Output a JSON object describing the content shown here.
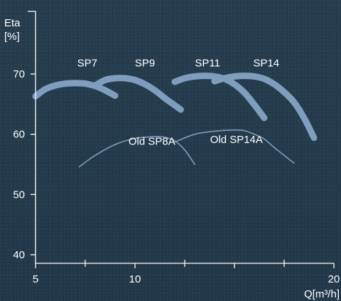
{
  "chart_data": {
    "type": "line",
    "ylabel_line1": "Eta",
    "ylabel_line2": "[%]",
    "xlabel": "Q[m³/h]",
    "xlim": [
      5,
      20
    ],
    "ylim": [
      40,
      80
    ],
    "x_ticks": [
      5,
      10,
      15,
      20
    ],
    "x_tick_labels": [
      "5",
      "10",
      "",
      "20"
    ],
    "x_minor_ticks": [
      7.5,
      12.5,
      17.5
    ],
    "y_ticks": [
      40,
      50,
      60,
      70
    ],
    "y_tick_labels": [
      "40",
      "50",
      "60",
      "70"
    ],
    "series": [
      {
        "name": "SP7",
        "style": "thick",
        "color": "#7f9dbc",
        "x": [
          5,
          5.5,
          6,
          6.5,
          7,
          7.5,
          8,
          8.5,
          9
        ],
        "y": [
          66.3,
          67.5,
          68.1,
          68.4,
          68.5,
          68.4,
          68.0,
          67.3,
          66.4
        ]
      },
      {
        "name": "SP9",
        "style": "thick",
        "color": "#7f9dbc",
        "x": [
          8,
          8.5,
          9,
          9.5,
          10,
          10.5,
          11,
          11.5,
          12,
          12.3
        ],
        "y": [
          68.1,
          69.0,
          69.3,
          69.3,
          69.0,
          68.3,
          67.3,
          66.0,
          64.8,
          64.1
        ]
      },
      {
        "name": "SP11",
        "style": "thick",
        "color": "#7f9dbc",
        "x": [
          12,
          12.5,
          13,
          13.5,
          14,
          14.5,
          15,
          15.5,
          16,
          16.5
        ],
        "y": [
          68.7,
          69.3,
          69.6,
          69.7,
          69.6,
          69.2,
          68.3,
          66.9,
          64.9,
          62.7
        ]
      },
      {
        "name": "SP14",
        "style": "thick",
        "color": "#7f9dbc",
        "x": [
          14,
          14.5,
          15,
          15.5,
          16,
          16.5,
          17,
          17.5,
          18,
          18.5,
          19
        ],
        "y": [
          68.8,
          69.3,
          69.6,
          69.7,
          69.6,
          69.2,
          68.3,
          67.0,
          65.3,
          62.7,
          59.4
        ]
      },
      {
        "name": "Old SP8A",
        "style": "thin",
        "color": "#7f9dbc",
        "x": [
          7.2,
          8,
          9,
          10,
          11,
          11.5,
          12,
          12.5,
          13
        ],
        "y": [
          54.6,
          56.5,
          58.3,
          59.3,
          59.6,
          59.5,
          58.9,
          57.4,
          55.0
        ]
      },
      {
        "name": "Old SP14A",
        "style": "thin",
        "color": "#7f9dbc",
        "x": [
          12,
          13,
          14,
          15,
          15.5,
          16,
          16.5,
          17,
          17.5,
          18
        ],
        "y": [
          58.7,
          60.0,
          60.5,
          60.7,
          60.6,
          60.0,
          59.2,
          57.8,
          56.5,
          55.2
        ]
      }
    ],
    "annotations": [
      {
        "text": "SP7",
        "x": 7.6,
        "y": 71.5
      },
      {
        "text": "SP9",
        "x": 10.5,
        "y": 71.5
      },
      {
        "text": "SP11",
        "x": 13.65,
        "y": 71.5
      },
      {
        "text": "SP14",
        "x": 16.6,
        "y": 71.5
      },
      {
        "text": "Old SP8A",
        "x": 10.85,
        "y": 58.5
      },
      {
        "text": "Old SP14A",
        "x": 15.1,
        "y": 58.8
      }
    ]
  }
}
